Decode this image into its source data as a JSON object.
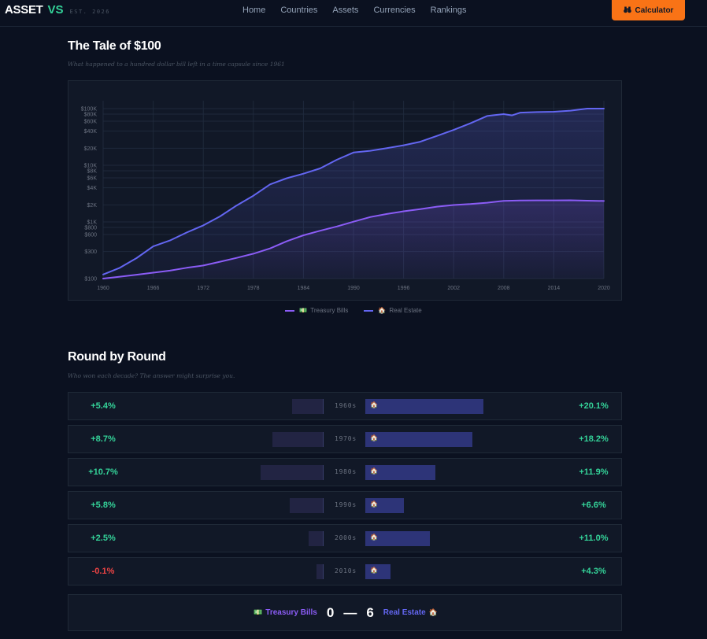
{
  "header": {
    "brand_asset": "ASSET",
    "brand_vs": "VS",
    "brand_est": "EST. 2026",
    "nav": [
      "Home",
      "Countries",
      "Assets",
      "Currencies",
      "Rankings"
    ],
    "calculator_label": "Calculator",
    "calculator_icon": "binoculars-icon"
  },
  "tale": {
    "title": "The Tale of $100",
    "subtitle": "What happened to a hundred dollar bill left in a time capsule since 1961"
  },
  "legend": [
    {
      "icon": "💵",
      "label": "Treasury Bills",
      "color": "#8b5cf6"
    },
    {
      "icon": "🏠",
      "label": "Real Estate",
      "color": "#6366f1"
    }
  ],
  "chart_data": {
    "type": "line",
    "title": "The Tale of $100",
    "xlabel": "",
    "ylabel": "",
    "yscale": "log",
    "ylim": [
      100,
      100000
    ],
    "xlim": [
      1960,
      2020
    ],
    "x_ticks": [
      "1960",
      "1966",
      "1972",
      "1978",
      "1984",
      "1990",
      "1996",
      "2002",
      "2008",
      "2014",
      "2020"
    ],
    "y_ticks": [
      {
        "value": 100,
        "label": "$100"
      },
      {
        "value": 300,
        "label": "$300"
      },
      {
        "value": 600,
        "label": "$600"
      },
      {
        "value": 800,
        "label": "$800"
      },
      {
        "value": 1000,
        "label": "$1K"
      },
      {
        "value": 2000,
        "label": "$2K"
      },
      {
        "value": 4000,
        "label": "$4K"
      },
      {
        "value": 6000,
        "label": "$6K"
      },
      {
        "value": 8000,
        "label": "$8K"
      },
      {
        "value": 10000,
        "label": "$10K"
      },
      {
        "value": 20000,
        "label": "$20K"
      },
      {
        "value": 40000,
        "label": "$40K"
      },
      {
        "value": 60000,
        "label": "$60K"
      },
      {
        "value": 80000,
        "label": "$80K"
      },
      {
        "value": 100000,
        "label": "$100K"
      }
    ],
    "series": [
      {
        "name": "Real Estate",
        "color": "#6366f1",
        "x": [
          1960,
          1962,
          1964,
          1966,
          1968,
          1970,
          1972,
          1974,
          1976,
          1978,
          1980,
          1982,
          1984,
          1986,
          1988,
          1990,
          1992,
          1994,
          1996,
          1998,
          2000,
          2002,
          2004,
          2006,
          2008,
          2009,
          2010,
          2012,
          2014,
          2016,
          2018,
          2020
        ],
        "values": [
          118,
          155,
          230,
          370,
          470,
          650,
          870,
          1250,
          1950,
          2900,
          4600,
          5900,
          7100,
          8800,
          12500,
          16800,
          18000,
          20000,
          22500,
          26000,
          33000,
          42000,
          55000,
          74000,
          80000,
          76000,
          85000,
          87000,
          88000,
          92000,
          100000,
          110000
        ]
      },
      {
        "name": "Treasury Bills",
        "color": "#8b5cf6",
        "x": [
          1960,
          1962,
          1964,
          1966,
          1968,
          1970,
          1972,
          1974,
          1976,
          1978,
          1980,
          1982,
          1984,
          1986,
          1988,
          1990,
          1992,
          1994,
          1996,
          1998,
          2000,
          2002,
          2004,
          2006,
          2008,
          2010,
          2012,
          2014,
          2016,
          2018,
          2020
        ],
        "values": [
          100,
          108,
          117,
          127,
          138,
          155,
          170,
          198,
          232,
          275,
          340,
          455,
          580,
          700,
          830,
          1010,
          1220,
          1380,
          1540,
          1680,
          1860,
          1990,
          2070,
          2180,
          2360,
          2390,
          2400,
          2400,
          2410,
          2370,
          2340
        ]
      }
    ]
  },
  "rounds": {
    "title": "Round by Round",
    "subtitle": "Who won each decade? The answer might surprise you.",
    "right_icon": "🏠",
    "rows": [
      {
        "decade": "1960s",
        "left": "+5.4%",
        "left_value": 5.4,
        "right": "+20.1%",
        "right_value": 20.1
      },
      {
        "decade": "1970s",
        "left": "+8.7%",
        "left_value": 8.7,
        "right": "+18.2%",
        "right_value": 18.2
      },
      {
        "decade": "1980s",
        "left": "+10.7%",
        "left_value": 10.7,
        "right": "+11.9%",
        "right_value": 11.9
      },
      {
        "decade": "1990s",
        "left": "+5.8%",
        "left_value": 5.8,
        "right": "+6.6%",
        "right_value": 6.6
      },
      {
        "decade": "2000s",
        "left": "+2.5%",
        "left_value": 2.5,
        "right": "+11.0%",
        "right_value": 11.0
      },
      {
        "decade": "2010s",
        "left": "-0.1%",
        "left_value": -0.1,
        "right": "+4.3%",
        "right_value": 4.3
      }
    ]
  },
  "score": {
    "left_icon": "💵",
    "left_name": "Treasury Bills",
    "left_score": "0",
    "dash": "—",
    "right_score": "6",
    "right_name": "Real Estate",
    "right_icon": "🏠"
  },
  "colors": {
    "positive": "#34d399",
    "negative": "#ef4444",
    "accent": "#f97316",
    "treasury": "#8b5cf6",
    "real_estate": "#6366f1"
  }
}
